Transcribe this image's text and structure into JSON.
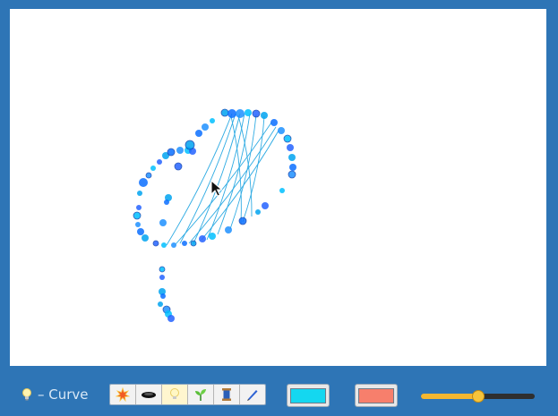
{
  "toolbar": {
    "mode_label": "– Curve",
    "mode_icon": "lightbulb-icon",
    "tools": [
      {
        "name": "explode-tool",
        "icon": "sparkle-burst-icon"
      },
      {
        "name": "hole-tool",
        "icon": "black-hole-icon"
      },
      {
        "name": "light-tool",
        "icon": "lightbulb-icon",
        "active": true
      },
      {
        "name": "grow-tool",
        "icon": "sprout-icon"
      },
      {
        "name": "thread-tool",
        "icon": "spool-icon"
      },
      {
        "name": "pen-tool",
        "icon": "pen-icon"
      }
    ],
    "primary_color": "#14d7f0",
    "secondary_color": "#f77f6c",
    "slider_value": 0.5
  },
  "colors": {
    "canvas": "#ffffff",
    "frame": "#2e75b6",
    "strand": "#1aa3e0"
  }
}
